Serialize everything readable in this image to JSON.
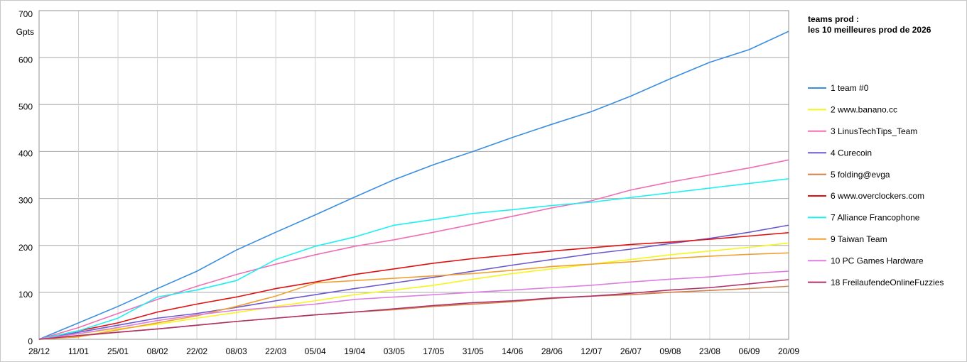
{
  "chart_data": {
    "type": "line",
    "title": "teams prod :",
    "subtitle": "les 10 meilleures prod de 2026",
    "y_label": "Gpts",
    "categories": [
      "28/12",
      "11/01",
      "25/01",
      "08/02",
      "22/02",
      "08/03",
      "22/03",
      "05/04",
      "19/04",
      "03/05",
      "17/05",
      "31/05",
      "14/06",
      "28/06",
      "12/07",
      "26/07",
      "09/08",
      "23/08",
      "06/09",
      "20/09"
    ],
    "ylim": [
      0,
      700
    ],
    "yticks": [
      0,
      100,
      200,
      300,
      400,
      500,
      600,
      700
    ],
    "grid": true,
    "legend": "right",
    "series": [
      {
        "name": "1 team #0",
        "color": "#3a8ee0",
        "values": [
          0,
          35,
          70,
          108,
          145,
          190,
          228,
          265,
          303,
          340,
          372,
          400,
          430,
          458,
          485,
          518,
          555,
          590,
          617,
          656
        ]
      },
      {
        "name": "2 www.banano.cc",
        "color": "#f5f51e",
        "values": [
          0,
          12,
          22,
          32,
          45,
          57,
          70,
          82,
          95,
          105,
          115,
          128,
          140,
          150,
          160,
          170,
          180,
          188,
          196,
          205
        ]
      },
      {
        "name": "3 LinusTechTips_Team",
        "color": "#f06eb4",
        "values": [
          0,
          25,
          55,
          85,
          113,
          138,
          160,
          180,
          198,
          212,
          228,
          245,
          262,
          280,
          295,
          318,
          335,
          350,
          365,
          382
        ]
      },
      {
        "name": "4 Curecoin",
        "color": "#6a5acd",
        "values": [
          0,
          15,
          30,
          45,
          55,
          68,
          82,
          95,
          108,
          120,
          132,
          145,
          158,
          170,
          182,
          192,
          204,
          215,
          228,
          243
        ]
      },
      {
        "name": "5 folding@evga",
        "color": "#d2804a",
        "values": [
          0,
          7,
          15,
          22,
          30,
          38,
          45,
          52,
          58,
          63,
          70,
          75,
          80,
          87,
          92,
          95,
          100,
          104,
          108,
          113
        ]
      },
      {
        "name": "6 www.overclockers.com",
        "color": "#e01010",
        "values": [
          0,
          18,
          35,
          58,
          75,
          90,
          108,
          122,
          138,
          150,
          162,
          172,
          180,
          188,
          195,
          202,
          207,
          213,
          220,
          227
        ]
      },
      {
        "name": "7 Alliance Francophone",
        "color": "#1ef0f0",
        "values": [
          0,
          18,
          45,
          90,
          105,
          125,
          170,
          198,
          218,
          243,
          255,
          268,
          276,
          285,
          292,
          302,
          312,
          322,
          332,
          342
        ]
      },
      {
        "name": "9 Taiwan Team",
        "color": "#f0a030",
        "values": [
          0,
          5,
          20,
          35,
          50,
          70,
          92,
          120,
          125,
          130,
          135,
          140,
          147,
          155,
          160,
          165,
          172,
          177,
          181,
          184
        ]
      },
      {
        "name": "10 PC Games Hardware",
        "color": "#dd7ee0",
        "values": [
          0,
          12,
          25,
          40,
          52,
          62,
          68,
          75,
          85,
          90,
          95,
          100,
          105,
          110,
          115,
          122,
          128,
          133,
          140,
          145
        ]
      },
      {
        "name": "18 FreilaufendeOnlineFuzzies",
        "color": "#b0306a",
        "values": [
          0,
          8,
          15,
          22,
          30,
          38,
          45,
          52,
          58,
          65,
          72,
          78,
          82,
          88,
          92,
          98,
          105,
          110,
          118,
          127
        ]
      }
    ]
  }
}
